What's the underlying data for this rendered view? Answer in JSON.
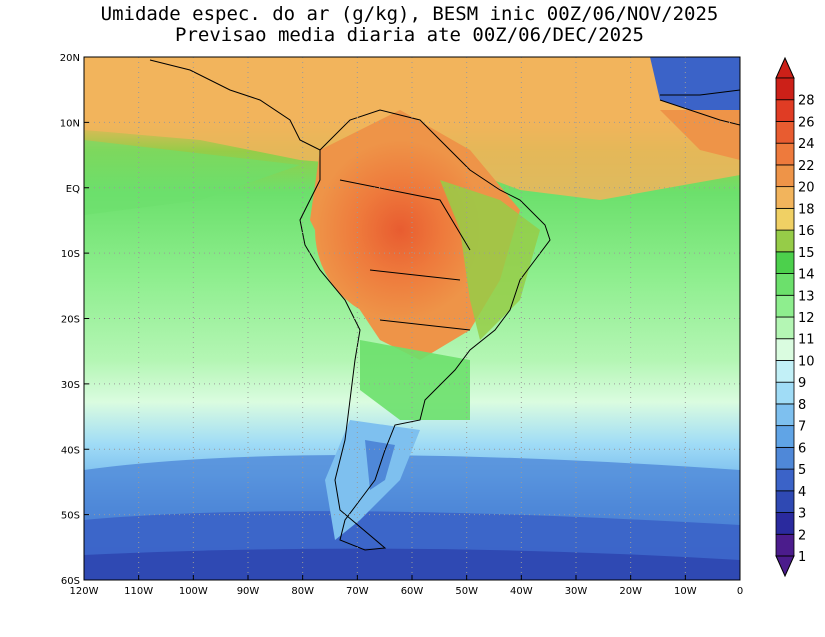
{
  "title_line1": "Umidade espec. do ar (g/kg), BESM inic 00Z/06/NOV/2025",
  "title_line2": "Previsao media diaria ate 00Z/06/DEC/2025",
  "lat_labels": [
    "20N",
    "10N",
    "EQ",
    "10S",
    "20S",
    "30S",
    "40S",
    "50S",
    "60S"
  ],
  "lon_labels": [
    "120W",
    "110W",
    "100W",
    "90W",
    "80W",
    "70W",
    "60W",
    "50W",
    "40W",
    "30W",
    "20W",
    "10W",
    "0"
  ],
  "colorbar": {
    "labels": [
      "1",
      "2",
      "3",
      "4",
      "5",
      "6",
      "7",
      "8",
      "9",
      "10",
      "11",
      "12",
      "13",
      "14",
      "15",
      "16",
      "18",
      "20",
      "22",
      "24",
      "26",
      "28"
    ],
    "colors": [
      "#4b1c8c",
      "#2a2a9e",
      "#2f49b3",
      "#3b63c8",
      "#4f88d8",
      "#60a4e6",
      "#7ec0ef",
      "#a0dcf6",
      "#c2f0f7",
      "#dafce0",
      "#b4f6b4",
      "#8eee8e",
      "#6ce06c",
      "#4cd04c",
      "#96cc48",
      "#f0d064",
      "#f2b45c",
      "#ee9448",
      "#ee7a3c",
      "#e85c30",
      "#e03c24",
      "#cc2018"
    ]
  },
  "colors": {
    "ocean_warm": "#f2b45c",
    "land_hot": "#ee7a3c",
    "ocean_mid": "#8eee8e",
    "south_cold": "#3b63c8"
  }
}
